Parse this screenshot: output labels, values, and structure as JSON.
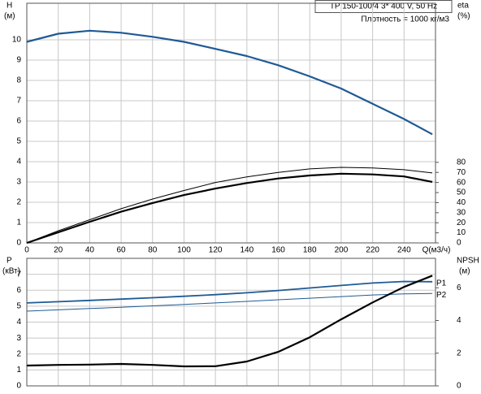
{
  "chart_data": [
    {
      "type": "line",
      "title": "TP 150-100/4   3* 400 V, 50 Hz",
      "subtitle": "Плотность = 1000 кг/м3",
      "ylabel": "H",
      "ylabel_unit": "(м)",
      "y2label": "eta",
      "y2label_unit": "(%)",
      "xlabel": "Q(м3/ч)",
      "x": [
        0,
        20,
        40,
        60,
        80,
        100,
        120,
        140,
        160,
        180,
        200,
        220,
        240,
        258
      ],
      "xlim": [
        0,
        260
      ],
      "xticks": [
        0,
        20,
        40,
        60,
        80,
        100,
        120,
        140,
        160,
        180,
        200,
        220,
        240
      ],
      "ylim": [
        0,
        11.8
      ],
      "yticks": [
        0,
        1,
        2,
        3,
        4,
        5,
        6,
        7,
        8,
        9,
        10
      ],
      "y2lim": [
        0,
        238
      ],
      "y2ticks": [
        0,
        10,
        20,
        30,
        40,
        50,
        60,
        70,
        80
      ],
      "grid": true,
      "series": [
        {
          "color": "#1f5a96",
          "line_width": 2.2,
          "values": [
            9.9,
            10.3,
            10.45,
            10.35,
            10.15,
            9.9,
            9.55,
            9.2,
            8.75,
            8.2,
            7.6,
            6.85,
            6.1,
            5.35
          ]
        },
        {
          "color": "#000000",
          "line_width": 1,
          "axis": "y2",
          "values": [
            0,
            12,
            23,
            34,
            43.6,
            52,
            60,
            65.5,
            70,
            73.5,
            75,
            74.5,
            72.7,
            69.5
          ]
        },
        {
          "color": "#000000",
          "line_width": 2.2,
          "axis": "y2",
          "values": [
            0,
            10.5,
            21,
            31,
            39.6,
            47.5,
            54,
            59.5,
            64,
            67,
            68.7,
            68,
            66,
            60.6
          ]
        }
      ]
    },
    {
      "type": "line",
      "ylabel": "P",
      "ylabel_unit": "(кВт)",
      "y2label": "NPSH",
      "y2label_unit": "(м)",
      "x": [
        0,
        20,
        40,
        60,
        80,
        100,
        120,
        140,
        160,
        180,
        200,
        220,
        240,
        258
      ],
      "xlim": [
        0,
        260
      ],
      "ylim": [
        0,
        8
      ],
      "yticks": [
        0,
        1,
        2,
        3,
        4,
        5,
        6,
        7
      ],
      "y2lim": [
        0,
        7.8
      ],
      "y2ticks": [
        0,
        2,
        4,
        6
      ],
      "grid": true,
      "series": [
        {
          "name": "P1",
          "color": "#1f5a96",
          "line_width": 1.8,
          "values": [
            5.2,
            5.28,
            5.36,
            5.44,
            5.53,
            5.62,
            5.72,
            5.84,
            5.98,
            6.14,
            6.3,
            6.45,
            6.55,
            6.53
          ]
        },
        {
          "name": "P2",
          "color": "#1f5a96",
          "line_width": 1,
          "values": [
            4.69,
            4.77,
            4.85,
            4.93,
            5.02,
            5.11,
            5.2,
            5.3,
            5.4,
            5.5,
            5.6,
            5.7,
            5.77,
            5.8
          ]
        },
        {
          "color": "#000000",
          "line_width": 2.2,
          "axis": "y2",
          "values": [
            1.24,
            1.28,
            1.3,
            1.34,
            1.28,
            1.19,
            1.2,
            1.49,
            2.08,
            2.97,
            4.07,
            5.1,
            6.05,
            6.74
          ]
        }
      ]
    }
  ]
}
